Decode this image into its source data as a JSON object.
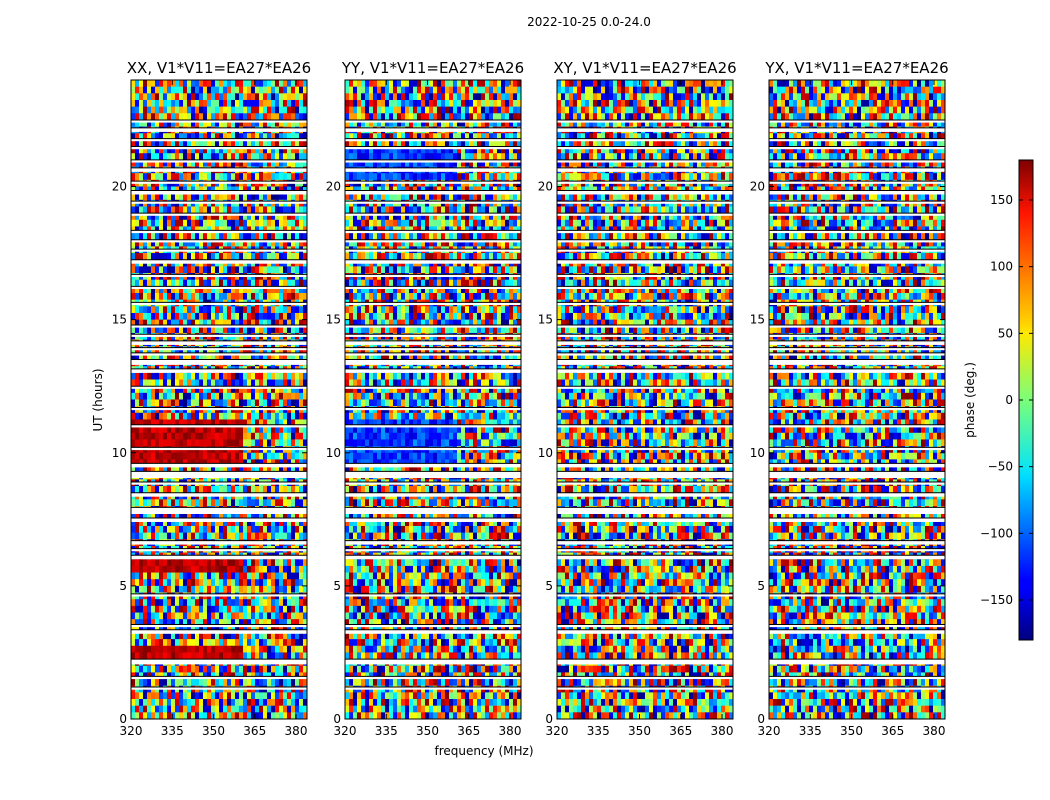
{
  "figure": {
    "suptitle": "2022-10-25 0.0-24.0"
  },
  "chart_data": {
    "type": "heatmap",
    "description_units": "phase (deg.) vs frequency (MHz) and UT (hours)",
    "xlabel": "frequency (MHz)",
    "ylabel": "UT (hours)",
    "xlim": [
      320,
      384
    ],
    "ylim": [
      0,
      24
    ],
    "xticks": [
      320,
      335,
      350,
      365,
      380
    ],
    "yticks": [
      0,
      5,
      10,
      15,
      20
    ],
    "panels": [
      {
        "title": "XX, V1*V11=EA27*EA26",
        "pol": "XX"
      },
      {
        "title": "YY, V1*V11=EA27*EA26",
        "pol": "YY"
      },
      {
        "title": "XY, V1*V11=EA27*EA26",
        "pol": "XY"
      },
      {
        "title": "YX, V1*V11=EA27*EA26",
        "pol": "YX"
      }
    ],
    "colorbar": {
      "label": "phase (deg.)",
      "range": [
        -180,
        180
      ],
      "ticks": [
        150,
        100,
        50,
        0,
        -50,
        -100,
        -150
      ],
      "tick_labels": [
        "150",
        "100",
        "50",
        "0",
        "−50",
        "−100",
        "−150"
      ],
      "colormap": "jet"
    },
    "flagged_ut_bands": [
      [
        1.1,
        1.2
      ],
      [
        1.5,
        1.6
      ],
      [
        2.05,
        2.25
      ],
      [
        3.2,
        3.35
      ],
      [
        3.45,
        3.55
      ],
      [
        4.6,
        4.7
      ],
      [
        6.0,
        6.15
      ],
      [
        6.3,
        6.4
      ],
      [
        6.55,
        6.7
      ],
      [
        7.4,
        7.55
      ],
      [
        7.7,
        7.95
      ],
      [
        8.35,
        8.5
      ],
      [
        8.8,
        8.9
      ],
      [
        9.05,
        9.3
      ],
      [
        9.45,
        9.6
      ],
      [
        10.1,
        10.2
      ],
      [
        10.95,
        11.05
      ],
      [
        11.6,
        11.7
      ],
      [
        12.4,
        12.5
      ],
      [
        13.0,
        13.15
      ],
      [
        13.3,
        13.5
      ],
      [
        13.65,
        13.75
      ],
      [
        13.85,
        13.95
      ],
      [
        14.05,
        14.2
      ],
      [
        14.35,
        14.45
      ],
      [
        14.7,
        14.8
      ],
      [
        15.55,
        15.65
      ],
      [
        16.15,
        16.25
      ],
      [
        16.6,
        16.7
      ],
      [
        17.1,
        17.25
      ],
      [
        17.55,
        17.65
      ],
      [
        17.9,
        18.0
      ],
      [
        18.25,
        18.35
      ],
      [
        18.9,
        19.0
      ],
      [
        19.35,
        19.45
      ],
      [
        19.7,
        19.85
      ],
      [
        20.1,
        20.2
      ],
      [
        20.55,
        20.7
      ],
      [
        20.9,
        21.0
      ],
      [
        21.4,
        21.5
      ],
      [
        21.7,
        21.8
      ],
      [
        22.05,
        22.2
      ],
      [
        22.4,
        22.5
      ]
    ]
  }
}
